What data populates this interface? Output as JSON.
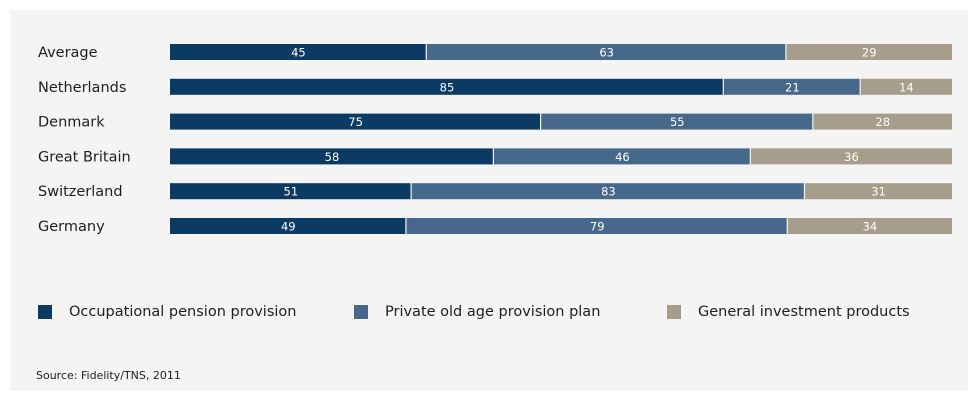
{
  "chart_data": {
    "type": "bar",
    "orientation": "horizontal",
    "stacked": true,
    "categories": [
      "Average",
      "Netherlands",
      "Denmark",
      "Great Britain",
      "Switzerland",
      "Germany"
    ],
    "series": [
      {
        "name": "Occupational pension provision",
        "color": "#0b3a62",
        "values": [
          45,
          85,
          75,
          58,
          51,
          49
        ]
      },
      {
        "name": "Private old age provision plan",
        "color": "#46698b",
        "values": [
          63,
          21,
          55,
          46,
          83,
          79
        ]
      },
      {
        "name": "General investment products",
        "color": "#a69e8b",
        "values": [
          29,
          14,
          28,
          36,
          31,
          34
        ]
      }
    ],
    "grid": false,
    "legend_position": "bottom",
    "source": "Source: Fidelity/TNS, 2011"
  }
}
